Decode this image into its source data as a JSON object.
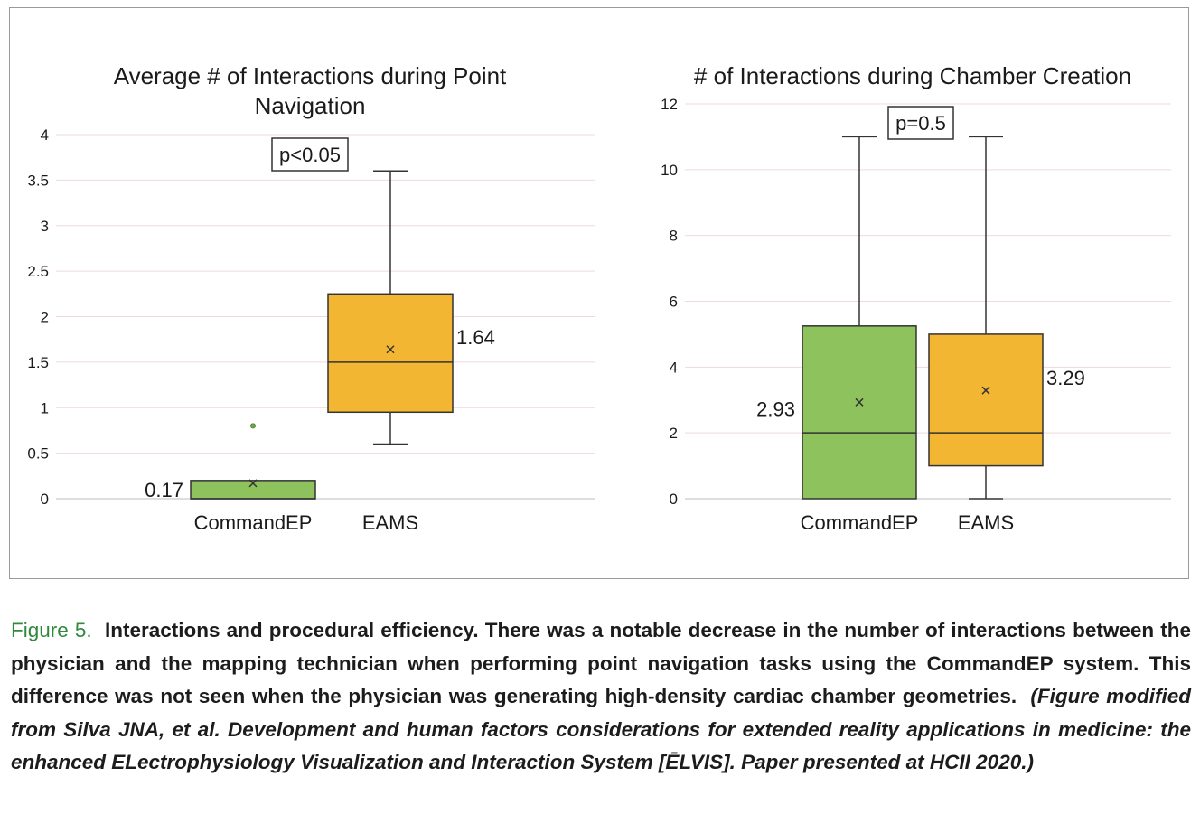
{
  "chart_data": [
    {
      "type": "box",
      "title": "Average # of Interactions during Point Navigation",
      "title_lines": [
        "Average # of Interactions during Point",
        "Navigation"
      ],
      "xlabel": "",
      "ylabel": "",
      "ylim": [
        0,
        4
      ],
      "yticks": [
        0,
        0.5,
        1,
        1.5,
        2,
        2.5,
        3,
        3.5,
        4
      ],
      "ytick_labels": [
        "0",
        "0.5",
        "1",
        "1.5",
        "2",
        "2.5",
        "3",
        "3.5",
        "4"
      ],
      "grid": true,
      "annotation": "p<0.05",
      "categories": [
        "CommandEP",
        "EAMS"
      ],
      "series": [
        {
          "name": "CommandEP",
          "color": "#8dc25d",
          "min": 0,
          "q1": 0,
          "median": 0,
          "q3": 0.2,
          "max": 0.2,
          "mean": 0.17,
          "mean_label": "0.17",
          "label_side": "left",
          "outliers": [
            0.8
          ]
        },
        {
          "name": "EAMS",
          "color": "#f2b632",
          "min": 0.6,
          "q1": 0.95,
          "median": 1.5,
          "q3": 2.25,
          "max": 3.6,
          "mean": 1.64,
          "mean_label": "1.64",
          "label_side": "right",
          "outliers": []
        }
      ]
    },
    {
      "type": "box",
      "title": "# of Interactions during Chamber Creation",
      "title_lines": [
        "# of Interactions during Chamber Creation"
      ],
      "xlabel": "",
      "ylabel": "",
      "ylim": [
        0,
        12
      ],
      "yticks": [
        0,
        2,
        4,
        6,
        8,
        10,
        12
      ],
      "ytick_labels": [
        "0",
        "2",
        "4",
        "6",
        "8",
        "10",
        "12"
      ],
      "grid": true,
      "annotation": "p=0.5",
      "categories": [
        "CommandEP",
        "EAMS"
      ],
      "series": [
        {
          "name": "CommandEP",
          "color": "#8dc25d",
          "min": 0,
          "q1": 0,
          "median": 2,
          "q3": 5.25,
          "max": 11,
          "mean": 2.93,
          "mean_label": "2.93",
          "label_side": "left",
          "outliers": []
        },
        {
          "name": "EAMS",
          "color": "#f2b632",
          "min": 0,
          "q1": 1,
          "median": 2,
          "q3": 5,
          "max": 11,
          "mean": 3.29,
          "mean_label": "3.29",
          "label_side": "right",
          "outliers": []
        }
      ]
    }
  ],
  "caption": {
    "label": "Figure 5.",
    "text": "Interactions and procedural efficiency. There was a notable decrease in the number of interactions between the physician and the mapping technician when performing point navigation tasks using the CommandEP system. This difference was not seen when the physician was generating high-density cardiac chamber geometries.",
    "credit": "(Figure modified from Silva JNA, et al. Development and human factors considerations for extended reality applications in medicine: the enhanced ELectrophysiology Visualization and Interaction System [ĒLVIS]. Paper presented at HCII 2020.)"
  }
}
